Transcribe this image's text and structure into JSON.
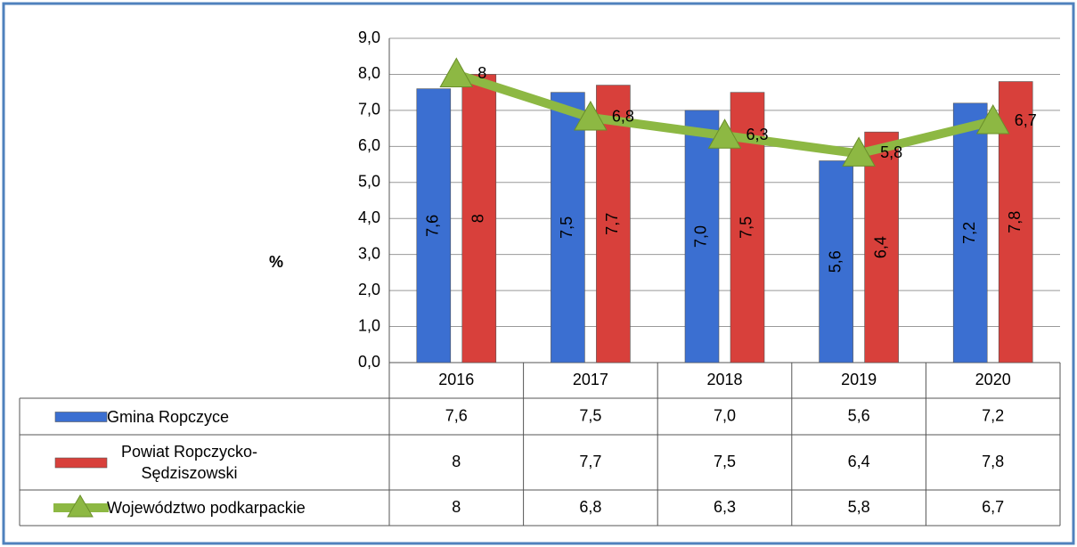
{
  "chart_data": {
    "type": "bar_line_table",
    "y_label": "%",
    "categories": [
      "2016",
      "2017",
      "2018",
      "2019",
      "2020"
    ],
    "ylim": [
      0,
      9
    ],
    "yticks": [
      {
        "value": 0,
        "label": "0,0"
      },
      {
        "value": 1,
        "label": "1,0"
      },
      {
        "value": 2,
        "label": "2,0"
      },
      {
        "value": 3,
        "label": "3,0"
      },
      {
        "value": 4,
        "label": "4,0"
      },
      {
        "value": 5,
        "label": "5,0"
      },
      {
        "value": 6,
        "label": "6,0"
      },
      {
        "value": 7,
        "label": "7,0"
      },
      {
        "value": 8,
        "label": "8,0"
      },
      {
        "value": 9,
        "label": "9,0"
      }
    ],
    "grid": true,
    "series": [
      {
        "name": "Gmina Ropczyce",
        "type": "bar",
        "color": "#3b6fd1",
        "values": [
          7.6,
          7.5,
          7.0,
          5.6,
          7.2
        ],
        "value_labels": [
          "7,6",
          "7,5",
          "7,0",
          "5,6",
          "7,2"
        ]
      },
      {
        "name": "Powiat Ropczycko-Sędziszowski",
        "type": "bar",
        "color": "#d8403b",
        "values": [
          8,
          7.7,
          7.5,
          6.4,
          7.8
        ],
        "value_labels": [
          "8",
          "7,7",
          "7,5",
          "6,4",
          "7,8"
        ]
      },
      {
        "name": "Województwo podkarpackie",
        "type": "line",
        "color": "#8db843",
        "values": [
          8,
          6.8,
          6.3,
          5.8,
          6.7
        ],
        "value_labels": [
          "8",
          "6,8",
          "6,3",
          "5,8",
          "6,7"
        ]
      }
    ]
  }
}
